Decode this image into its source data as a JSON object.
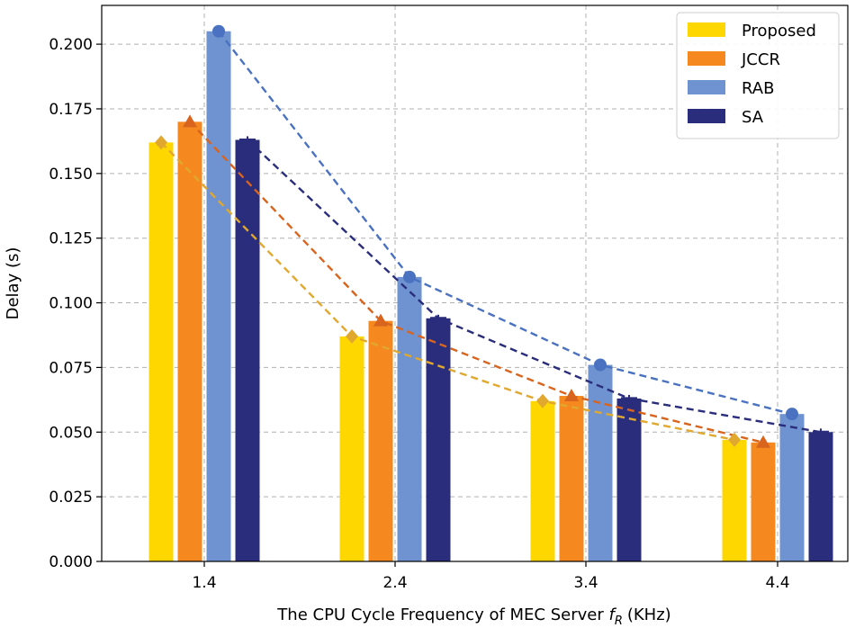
{
  "chart_data": {
    "type": "bar",
    "title": "",
    "xlabel": "The CPU Cycle Frequency of MEC Server",
    "xlabel_symbol": "f",
    "xlabel_subscript": "R",
    "xlabel_unit": "(KHz)",
    "ylabel": "Delay (s)",
    "ylim": [
      0,
      0.215
    ],
    "yticks": [
      "0.000",
      "0.025",
      "0.050",
      "0.075",
      "0.100",
      "0.125",
      "0.150",
      "0.175",
      "0.200"
    ],
    "categories": [
      "1.4",
      "2.4",
      "3.4",
      "4.4"
    ],
    "grid": true,
    "legend_position": "top-right",
    "series": [
      {
        "name": "Proposed",
        "values": [
          0.162,
          0.087,
          0.062,
          0.047
        ],
        "bar_color": "#FFD700",
        "line_color": "#E0A82E",
        "marker": "diamond"
      },
      {
        "name": "JCCR",
        "values": [
          0.17,
          0.093,
          0.064,
          0.046
        ],
        "bar_color": "#F5891F",
        "line_color": "#D8641E",
        "marker": "triangle"
      },
      {
        "name": "RAB",
        "values": [
          0.205,
          0.11,
          0.076,
          0.057
        ],
        "bar_color": "#6E93D0",
        "line_color": "#4A72C0",
        "marker": "circle"
      },
      {
        "name": "SA",
        "values": [
          0.163,
          0.094,
          0.063,
          0.05
        ],
        "bar_color": "#2A2D7C",
        "line_color": "#2A2D7C",
        "marker": "errorbar"
      }
    ]
  }
}
